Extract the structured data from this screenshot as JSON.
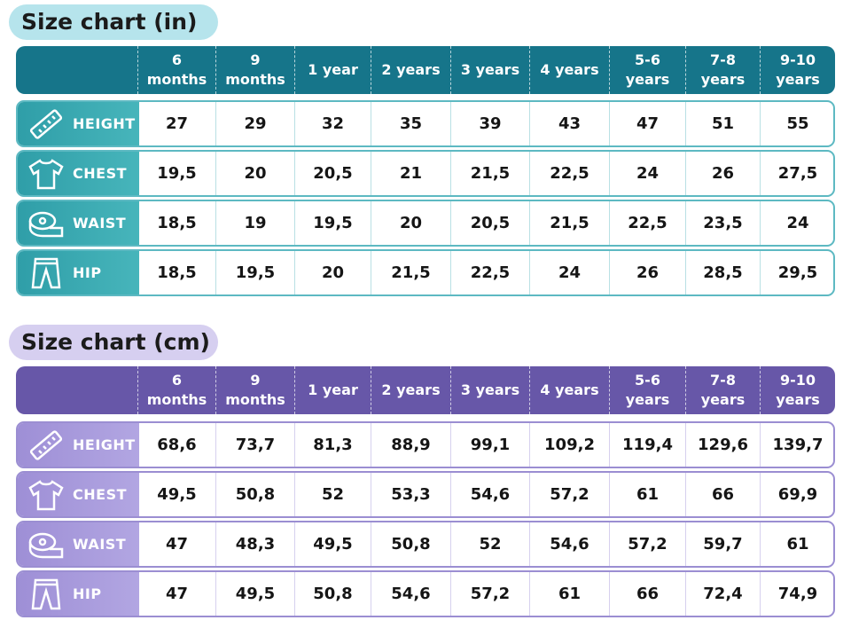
{
  "sections": [
    {
      "title": "Size chart (in)",
      "columns": [
        "6\nmonths",
        "9\nmonths",
        "1 year",
        "2 years",
        "3 years",
        "4 years",
        "5-6\nyears",
        "7-8\nyears",
        "9-10\nyears"
      ],
      "rows": [
        {
          "label": "HEIGHT",
          "values": [
            "27",
            "29",
            "32",
            "35",
            "39",
            "43",
            "47",
            "51",
            "55"
          ]
        },
        {
          "label": "CHEST",
          "values": [
            "19,5",
            "20",
            "20,5",
            "21",
            "21,5",
            "22,5",
            "24",
            "26",
            "27,5"
          ]
        },
        {
          "label": "WAIST",
          "values": [
            "18,5",
            "19",
            "19,5",
            "20",
            "20,5",
            "21,5",
            "22,5",
            "23,5",
            "24"
          ]
        },
        {
          "label": "HIP",
          "values": [
            "18,5",
            "19,5",
            "20",
            "21,5",
            "22,5",
            "24",
            "26",
            "28,5",
            "29,5"
          ]
        }
      ]
    },
    {
      "title": "Size chart (cm)",
      "columns": [
        "6\nmonths",
        "9\nmonths",
        "1 year",
        "2 years",
        "3 years",
        "4 years",
        "5-6\nyears",
        "7-8\nyears",
        "9-10\nyears"
      ],
      "rows": [
        {
          "label": "HEIGHT",
          "values": [
            "68,6",
            "73,7",
            "81,3",
            "88,9",
            "99,1",
            "109,2",
            "119,4",
            "129,6",
            "139,7"
          ]
        },
        {
          "label": "CHEST",
          "values": [
            "49,5",
            "50,8",
            "52",
            "53,3",
            "54,6",
            "57,2",
            "61",
            "66",
            "69,9"
          ]
        },
        {
          "label": "WAIST",
          "values": [
            "47",
            "48,3",
            "49,5",
            "50,8",
            "52",
            "54,6",
            "57,2",
            "59,7",
            "61"
          ]
        },
        {
          "label": "HIP",
          "values": [
            "47",
            "49,5",
            "50,8",
            "54,6",
            "57,2",
            "61",
            "66",
            "72,4",
            "74,9"
          ]
        }
      ]
    }
  ]
}
